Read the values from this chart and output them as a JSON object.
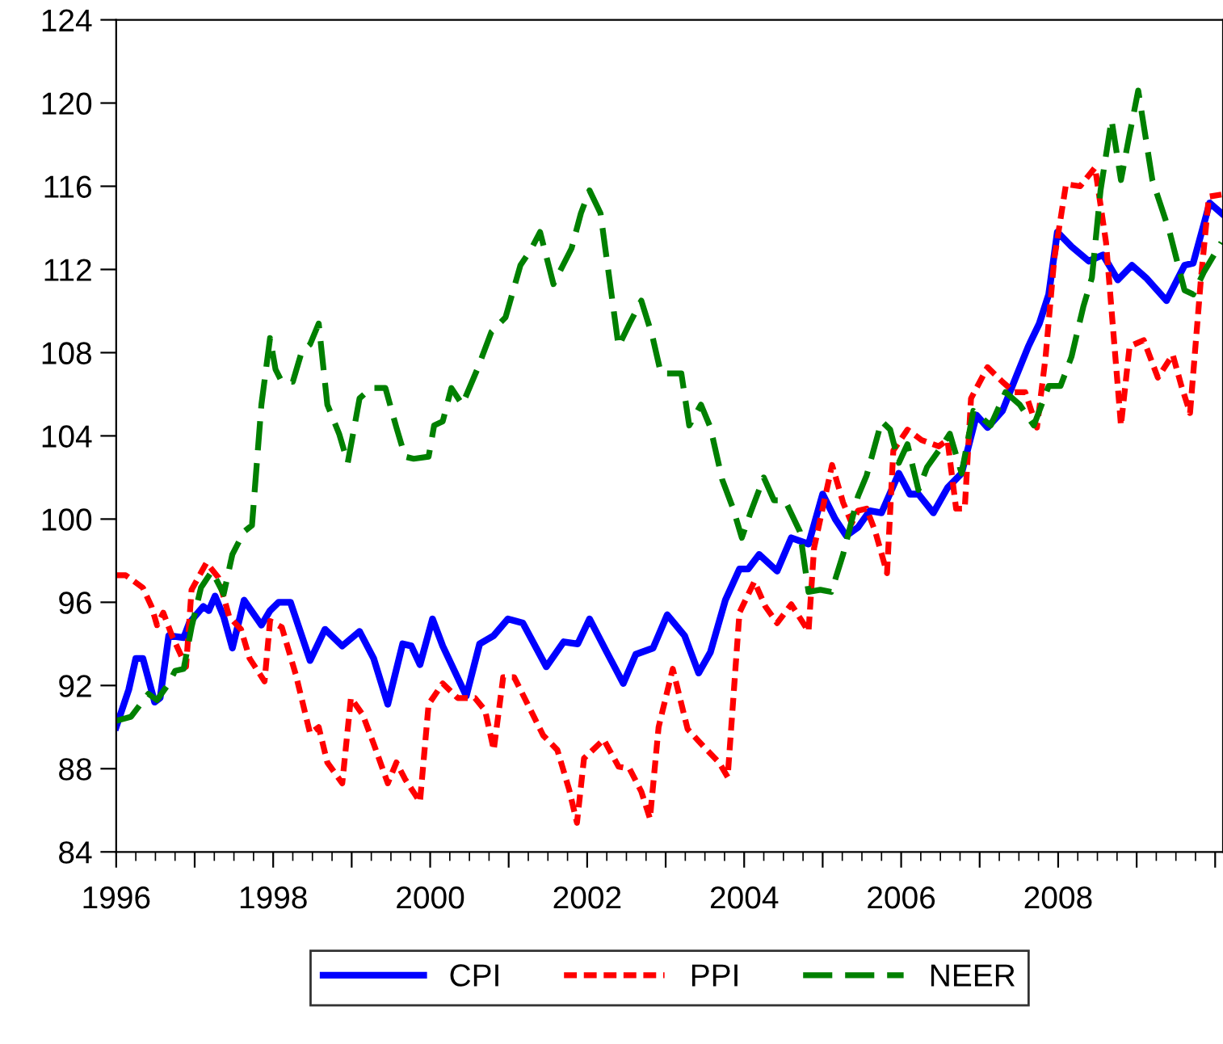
{
  "chart_data": {
    "type": "line",
    "legend": "bottom",
    "grid": false,
    "marker": "none",
    "xlim": [
      1996,
      2010.1
    ],
    "ylim": [
      84,
      124
    ],
    "yticks": [
      84,
      88,
      92,
      96,
      100,
      104,
      108,
      112,
      116,
      120,
      124
    ],
    "xticks": [
      {
        "value": 1996,
        "label": "1996"
      },
      {
        "value": 1997,
        "label": null
      },
      {
        "value": 1998,
        "label": "1998"
      },
      {
        "value": 1999,
        "label": null
      },
      {
        "value": 2000,
        "label": "2000"
      },
      {
        "value": 2001,
        "label": null
      },
      {
        "value": 2002,
        "label": "2002"
      },
      {
        "value": 2003,
        "label": null
      },
      {
        "value": 2004,
        "label": "2004"
      },
      {
        "value": 2005,
        "label": null
      },
      {
        "value": 2006,
        "label": "2006"
      },
      {
        "value": 2007,
        "label": null
      },
      {
        "value": 2008,
        "label": "2008"
      },
      {
        "value": 2009,
        "label": null
      },
      {
        "value": 2010,
        "label": null
      }
    ],
    "series": [
      {
        "name": "CPI",
        "color": "#0000ff",
        "line_style": "solid",
        "x": [
          1996.0,
          1996.16,
          1996.25,
          1996.34,
          1996.49,
          1996.56,
          1996.67,
          1996.86,
          1996.93,
          1997.11,
          1997.18,
          1997.26,
          1997.37,
          1997.48,
          1997.63,
          1997.85,
          1997.96,
          1998.07,
          1998.22,
          1998.47,
          1998.66,
          1998.88,
          1999.1,
          1999.28,
          1999.46,
          1999.65,
          1999.76,
          1999.87,
          2000.03,
          2000.16,
          2000.46,
          2000.63,
          2000.81,
          2000.99,
          2001.18,
          2001.48,
          2001.7,
          2001.88,
          2002.03,
          2002.25,
          2002.46,
          2002.62,
          2002.84,
          2003.02,
          2003.24,
          2003.42,
          2003.57,
          2003.76,
          2003.94,
          2004.05,
          2004.19,
          2004.42,
          2004.6,
          2004.82,
          2005.0,
          2005.16,
          2005.3,
          2005.45,
          2005.6,
          2005.75,
          2005.97,
          2006.11,
          2006.22,
          2006.41,
          2006.59,
          2006.77,
          2006.96,
          2007.1,
          2007.29,
          2007.47,
          2007.62,
          2007.76,
          2007.88,
          2007.99,
          2008.17,
          2008.39,
          2008.57,
          2008.76,
          2008.94,
          2009.12,
          2009.38,
          2009.61,
          2009.72,
          2009.93,
          2010.08
        ],
        "values": [
          90.0,
          91.8,
          93.3,
          93.3,
          91.2,
          91.4,
          94.4,
          94.3,
          95.0,
          95.8,
          95.6,
          96.3,
          95.3,
          93.8,
          96.1,
          94.9,
          95.6,
          96.0,
          96.0,
          93.2,
          94.7,
          93.9,
          94.6,
          93.3,
          91.1,
          94.0,
          93.9,
          93.0,
          95.2,
          93.9,
          91.5,
          94.0,
          94.4,
          95.2,
          95.0,
          92.9,
          94.1,
          94.0,
          95.2,
          93.6,
          92.1,
          93.5,
          93.8,
          95.4,
          94.4,
          92.6,
          93.6,
          96.1,
          97.6,
          97.6,
          98.3,
          97.5,
          99.1,
          98.8,
          101.2,
          100.0,
          99.2,
          99.6,
          100.4,
          100.3,
          102.2,
          101.2,
          101.2,
          100.3,
          101.5,
          102.2,
          105.0,
          104.4,
          105.2,
          106.9,
          108.3,
          109.4,
          110.8,
          113.8,
          113.1,
          112.4,
          112.7,
          111.5,
          112.2,
          111.6,
          110.5,
          112.2,
          112.3,
          115.2,
          114.7
        ]
      },
      {
        "name": "PPI",
        "color": "#ff0000",
        "line_style": "dotted",
        "x": [
          1996.0,
          1996.12,
          1996.34,
          1996.45,
          1996.52,
          1996.6,
          1996.71,
          1996.82,
          1996.89,
          1996.96,
          1997.15,
          1997.3,
          1997.44,
          1997.59,
          1997.7,
          1997.89,
          1997.96,
          1998.11,
          1998.29,
          1998.47,
          1998.58,
          1998.69,
          1998.88,
          1998.99,
          1999.14,
          1999.28,
          1999.46,
          1999.57,
          1999.68,
          1999.87,
          1999.98,
          2000.16,
          2000.35,
          2000.57,
          2000.7,
          2000.81,
          2000.93,
          2001.07,
          2001.44,
          2001.62,
          2001.77,
          2001.87,
          2001.96,
          2002.21,
          2002.4,
          2002.54,
          2002.69,
          2002.8,
          2002.91,
          2003.09,
          2003.28,
          2003.5,
          2003.68,
          2003.79,
          2003.94,
          2004.13,
          2004.27,
          2004.42,
          2004.6,
          2004.82,
          2004.89,
          2005.12,
          2005.26,
          2005.37,
          2005.45,
          2005.56,
          2005.67,
          2005.82,
          2005.9,
          2006.08,
          2006.26,
          2006.48,
          2006.59,
          2006.7,
          2006.81,
          2006.89,
          2007.1,
          2007.29,
          2007.44,
          2007.58,
          2007.73,
          2007.84,
          2007.95,
          2008.1,
          2008.28,
          2008.47,
          2008.61,
          2008.8,
          2008.91,
          2009.09,
          2009.27,
          2009.46,
          2009.57,
          2009.68,
          2009.82,
          2009.92,
          2010.08
        ],
        "values": [
          97.3,
          97.3,
          96.7,
          95.8,
          94.9,
          95.5,
          94.4,
          93.5,
          92.9,
          96.6,
          97.9,
          97.2,
          95.3,
          94.7,
          93.3,
          92.2,
          95.1,
          94.8,
          92.5,
          89.7,
          90.0,
          88.3,
          87.3,
          91.4,
          90.6,
          89.2,
          87.3,
          88.3,
          87.5,
          86.4,
          91.1,
          92.1,
          91.4,
          91.4,
          90.8,
          88.9,
          92.4,
          92.4,
          89.6,
          88.9,
          87.0,
          85.4,
          88.5,
          89.4,
          88.1,
          88.0,
          86.9,
          85.6,
          90.0,
          92.8,
          89.9,
          89.0,
          88.3,
          87.6,
          95.5,
          97.0,
          95.8,
          95.0,
          95.9,
          94.6,
          98.6,
          102.6,
          100.8,
          99.8,
          100.4,
          100.5,
          99.4,
          97.4,
          103.3,
          104.3,
          103.8,
          103.5,
          103.8,
          100.5,
          100.5,
          105.8,
          107.3,
          106.6,
          106.1,
          106.1,
          104.4,
          107.8,
          112.5,
          116.1,
          116.0,
          116.9,
          113.3,
          104.5,
          108.3,
          108.6,
          106.8,
          107.9,
          106.4,
          105.1,
          111.6,
          115.5,
          115.6
        ]
      },
      {
        "name": "NEER",
        "color": "#008000",
        "line_style": "dashed",
        "x": [
          1996.0,
          1996.19,
          1996.41,
          1996.52,
          1996.67,
          1996.75,
          1996.86,
          1996.96,
          1997.08,
          1997.22,
          1997.37,
          1997.48,
          1997.63,
          1997.73,
          1997.85,
          1997.96,
          1998.03,
          1998.11,
          1998.25,
          1998.36,
          1998.47,
          1998.58,
          1998.69,
          1998.84,
          1998.95,
          1999.1,
          1999.25,
          1999.43,
          1999.57,
          1999.68,
          1999.79,
          1999.98,
          2000.05,
          2000.16,
          2000.27,
          2000.41,
          2000.6,
          2000.78,
          2000.96,
          2001.15,
          2001.29,
          2001.4,
          2001.57,
          2001.8,
          2001.92,
          2002.03,
          2002.17,
          2002.4,
          2002.54,
          2002.69,
          2002.83,
          2002.94,
          2003.2,
          2003.3,
          2003.45,
          2003.57,
          2003.72,
          2003.86,
          2003.97,
          2004.08,
          2004.25,
          2004.38,
          2004.52,
          2004.71,
          2004.82,
          2004.97,
          2005.11,
          2005.26,
          2005.45,
          2005.56,
          2005.75,
          2005.86,
          2005.97,
          2006.08,
          2006.22,
          2006.33,
          2006.48,
          2006.62,
          2006.77,
          2006.92,
          2007.14,
          2007.33,
          2007.51,
          2007.69,
          2007.88,
          2008.03,
          2008.17,
          2008.32,
          2008.43,
          2008.54,
          2008.68,
          2008.8,
          2008.91,
          2009.02,
          2009.2,
          2009.42,
          2009.61,
          2009.72,
          2009.86,
          2010.08
        ],
        "values": [
          90.3,
          90.5,
          91.6,
          91.3,
          92.1,
          92.7,
          92.8,
          94.8,
          96.7,
          97.5,
          96.4,
          98.3,
          99.4,
          99.7,
          105.5,
          108.7,
          107.2,
          106.6,
          106.6,
          108.0,
          108.4,
          109.4,
          105.5,
          104.1,
          102.7,
          105.8,
          106.3,
          106.3,
          104.4,
          103.0,
          102.9,
          103.0,
          104.5,
          104.7,
          106.3,
          105.5,
          107.2,
          109.0,
          109.7,
          112.2,
          113.0,
          113.8,
          111.3,
          113.0,
          114.7,
          115.8,
          114.7,
          108.3,
          109.4,
          110.5,
          108.8,
          107.0,
          107.0,
          104.5,
          105.5,
          104.4,
          101.9,
          100.5,
          99.1,
          100.3,
          102.0,
          100.9,
          100.9,
          99.4,
          96.5,
          96.6,
          96.5,
          98.3,
          101.1,
          102.1,
          104.7,
          104.3,
          102.7,
          103.6,
          101.4,
          102.5,
          103.3,
          104.1,
          102.2,
          105.2,
          104.5,
          106.1,
          105.5,
          104.5,
          106.4,
          106.4,
          107.8,
          110.2,
          111.6,
          115.8,
          119.2,
          116.3,
          118.5,
          120.6,
          116.3,
          113.8,
          111.0,
          110.8,
          111.9,
          113.3
        ]
      }
    ]
  }
}
